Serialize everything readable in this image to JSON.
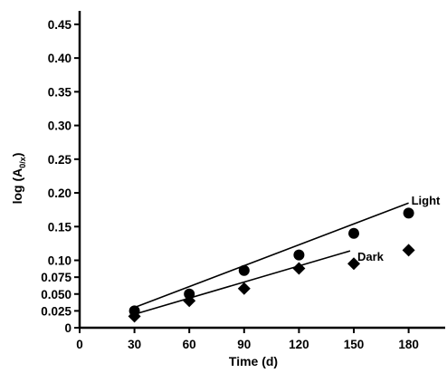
{
  "chart_data": {
    "type": "scatter",
    "xlabel": "Time (d)",
    "ylabel_main": "log (A",
    "ylabel_sub": "0/x",
    "ylabel_close": ")",
    "xlim": [
      0,
      200
    ],
    "ylim": [
      0,
      0.47
    ],
    "xticks": [
      "0",
      "30",
      "60",
      "90",
      "120",
      "150",
      "180"
    ],
    "yticks": [
      "0",
      "0.025",
      "0.050",
      "0.075",
      "0.10",
      "0.15",
      "0.20",
      "0.25",
      "0.30",
      "0.35",
      "0.40",
      "0.45"
    ],
    "ytick_values": [
      0,
      0.025,
      0.05,
      0.075,
      0.1,
      0.15,
      0.2,
      0.25,
      0.3,
      0.35,
      0.4,
      0.45
    ],
    "ylabel_axis_note": "y tick labels as printed",
    "grid": false,
    "legend": "none",
    "series": [
      {
        "name": "Light",
        "marker": "circle",
        "x": [
          30,
          60,
          90,
          120,
          150,
          180
        ],
        "y": [
          0.025,
          0.05,
          0.085,
          0.108,
          0.14,
          0.17
        ],
        "fit": {
          "x": [
            30,
            180
          ],
          "y": [
            0.03,
            0.185
          ]
        }
      },
      {
        "name": "Dark",
        "marker": "diamond",
        "x": [
          30,
          60,
          90,
          120,
          150,
          180
        ],
        "y": [
          0.017,
          0.04,
          0.058,
          0.088,
          0.095,
          0.115
        ],
        "fit": {
          "x": [
            30,
            148
          ],
          "y": [
            0.02,
            0.114
          ]
        }
      }
    ],
    "color": "#000000"
  }
}
